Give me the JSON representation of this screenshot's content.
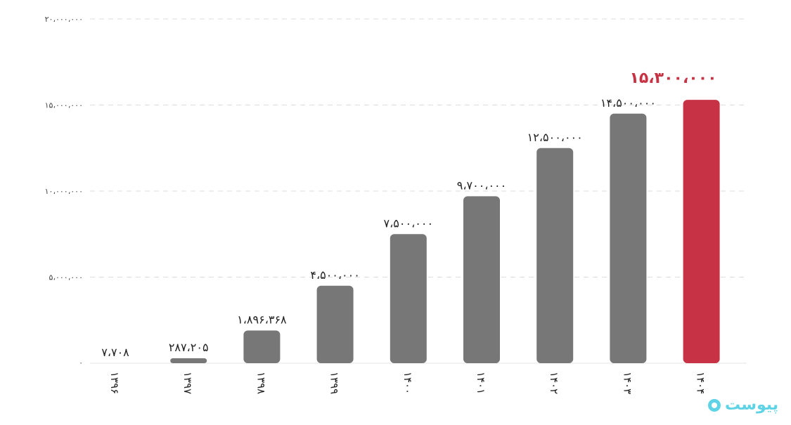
{
  "chart_data": {
    "type": "bar",
    "categories": [
      "۱۳۹۶",
      "۱۳۹۷",
      "۱۳۹۸",
      "۱۳۹۹",
      "۱۴۰۰",
      "۱۴۰۱",
      "۱۴۰۲",
      "۱۴۰۳",
      "۱۴۰۴"
    ],
    "values": [
      7708,
      287205,
      1896368,
      4500000,
      7500000,
      9700000,
      12500000,
      14500000,
      15300000
    ],
    "value_labels": [
      "۷،۷۰۸",
      "۲۸۷،۲۰۵",
      "۱،۸۹۶،۳۶۸",
      "۴،۵۰۰،۰۰۰",
      "۷،۵۰۰،۰۰۰",
      "۹،۷۰۰،۰۰۰",
      "۱۲،۵۰۰،۰۰۰",
      "۱۴،۵۰۰،۰۰۰",
      "۱۵،۳۰۰،۰۰۰"
    ],
    "highlight_index": 8,
    "ylim": [
      0,
      20000000
    ],
    "yticks": [
      0,
      5000000,
      10000000,
      15000000,
      20000000
    ],
    "ytick_labels": [
      "۰",
      "۵،۰۰۰،۰۰۰",
      "۱۰،۰۰۰،۰۰۰",
      "۱۵،۰۰۰،۰۰۰",
      "۲۰،۰۰۰،۰۰۰"
    ],
    "grid": true,
    "legend": "none",
    "colors": {
      "bar": "#777777",
      "highlight": "#c73344"
    }
  },
  "watermark": {
    "text": "پیوست",
    "color": "#5fd3e6"
  }
}
